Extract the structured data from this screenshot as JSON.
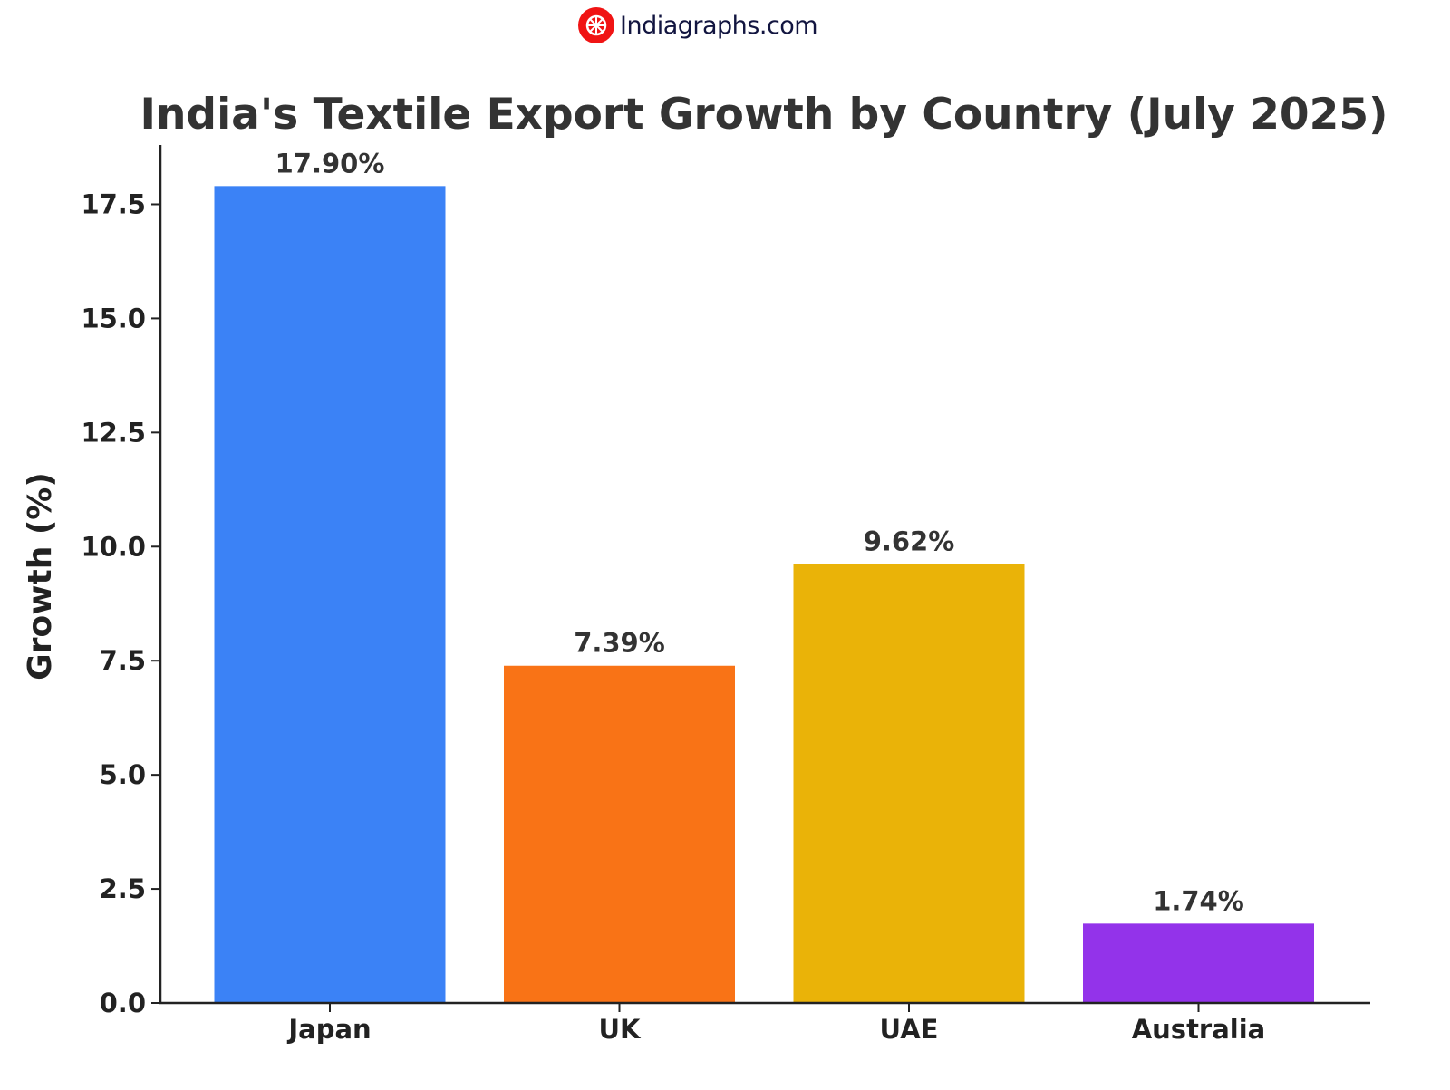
{
  "logo": {
    "text": "Indiagraphs.com",
    "color": "#f01414"
  },
  "chart_data": {
    "type": "bar",
    "title": "India's Textile Export Growth by Country (July 2025)",
    "xlabel": "",
    "ylabel": "Growth (%)",
    "categories": [
      "Japan",
      "UK",
      "UAE",
      "Australia"
    ],
    "values": [
      17.9,
      7.39,
      9.62,
      1.74
    ],
    "data_labels": [
      "17.90%",
      "7.39%",
      "9.62%",
      "1.74%"
    ],
    "colors": [
      "#3b82f6",
      "#f97316",
      "#eab308",
      "#9333ea"
    ],
    "yticks": [
      "0.0",
      "2.5",
      "5.0",
      "7.5",
      "10.0",
      "12.5",
      "15.0",
      "17.5"
    ],
    "ylim": [
      0,
      18.8
    ],
    "grid": false
  }
}
